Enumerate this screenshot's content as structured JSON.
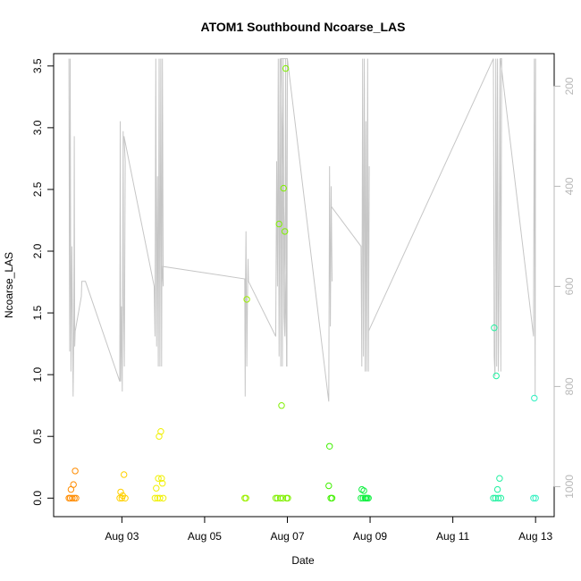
{
  "chart_data": {
    "type": "scatter",
    "title": "ATOM1 Southbound Ncoarse_LAS",
    "xlabel": "Date",
    "ylabel": "Ncoarse_LAS",
    "x_ticks": [
      "Aug 03",
      "Aug 05",
      "Aug 07",
      "Aug 09",
      "Aug 11",
      "Aug 13"
    ],
    "x_tick_values": [
      3,
      5,
      7,
      9,
      11,
      13
    ],
    "xlim": [
      1.35,
      13.45
    ],
    "y_ticks": [
      "0.0",
      "0.5",
      "1.0",
      "1.5",
      "2.0",
      "2.5",
      "3.0",
      "3.5"
    ],
    "y_tick_values": [
      0,
      0.5,
      1,
      1.5,
      2,
      2.5,
      3,
      3.5
    ],
    "ylim": [
      -0.15,
      3.6
    ],
    "y2_ticks": [
      "200",
      "400",
      "600",
      "800",
      "1000"
    ],
    "y2_tick_values": [
      200,
      400,
      600,
      800,
      1000
    ],
    "y2lim": [
      1060,
      135
    ],
    "grid": false,
    "points": [
      {
        "x": 1.72,
        "y": 0.0,
        "color": "#ff8c00"
      },
      {
        "x": 1.75,
        "y": 0.0,
        "color": "#ff8c00"
      },
      {
        "x": 1.77,
        "y": 0.07,
        "color": "#ff8c00"
      },
      {
        "x": 1.8,
        "y": 0.0,
        "color": "#ff8c00"
      },
      {
        "x": 1.83,
        "y": 0.11,
        "color": "#ff8c00"
      },
      {
        "x": 1.85,
        "y": 0.0,
        "color": "#ff8c00"
      },
      {
        "x": 1.87,
        "y": 0.22,
        "color": "#ff8c00"
      },
      {
        "x": 1.89,
        "y": 0.0,
        "color": "#ff8c00"
      },
      {
        "x": 2.95,
        "y": 0.0,
        "color": "#ffd000"
      },
      {
        "x": 2.97,
        "y": 0.05,
        "color": "#ffd000"
      },
      {
        "x": 3.0,
        "y": 0.0,
        "color": "#ffd000"
      },
      {
        "x": 3.02,
        "y": 0.02,
        "color": "#ffd000"
      },
      {
        "x": 3.05,
        "y": 0.19,
        "color": "#ffd000"
      },
      {
        "x": 3.08,
        "y": 0.0,
        "color": "#ffd000"
      },
      {
        "x": 3.8,
        "y": 0.0,
        "color": "#f0f000"
      },
      {
        "x": 3.83,
        "y": 0.08,
        "color": "#f0f000"
      },
      {
        "x": 3.86,
        "y": 0.0,
        "color": "#f0f000"
      },
      {
        "x": 3.88,
        "y": 0.16,
        "color": "#f0f000"
      },
      {
        "x": 3.9,
        "y": 0.5,
        "color": "#f0f000"
      },
      {
        "x": 3.92,
        "y": 0.0,
        "color": "#f0f000"
      },
      {
        "x": 3.94,
        "y": 0.54,
        "color": "#f0f000"
      },
      {
        "x": 3.96,
        "y": 0.16,
        "color": "#f0f000"
      },
      {
        "x": 3.98,
        "y": 0.12,
        "color": "#f0f000"
      },
      {
        "x": 4.0,
        "y": 0.0,
        "color": "#f0f000"
      },
      {
        "x": 5.97,
        "y": 0.0,
        "color": "#9cf000"
      },
      {
        "x": 6.0,
        "y": 0.0,
        "color": "#9cf000"
      },
      {
        "x": 6.02,
        "y": 1.61,
        "color": "#9cf000"
      },
      {
        "x": 6.72,
        "y": 0.0,
        "color": "#80f000"
      },
      {
        "x": 6.76,
        "y": 0.0,
        "color": "#80f000"
      },
      {
        "x": 6.8,
        "y": 2.22,
        "color": "#80f000"
      },
      {
        "x": 6.83,
        "y": 0.0,
        "color": "#80f000"
      },
      {
        "x": 6.86,
        "y": 0.75,
        "color": "#80f000"
      },
      {
        "x": 6.89,
        "y": 0.0,
        "color": "#80f000"
      },
      {
        "x": 6.91,
        "y": 2.51,
        "color": "#80f000"
      },
      {
        "x": 6.94,
        "y": 2.16,
        "color": "#80f000"
      },
      {
        "x": 6.96,
        "y": 3.48,
        "color": "#80f000"
      },
      {
        "x": 6.98,
        "y": 0.0,
        "color": "#80f000"
      },
      {
        "x": 7.01,
        "y": 0.0,
        "color": "#80f000"
      },
      {
        "x": 8.0,
        "y": 0.1,
        "color": "#40f000"
      },
      {
        "x": 8.02,
        "y": 0.42,
        "color": "#40f000"
      },
      {
        "x": 8.05,
        "y": 0.0,
        "color": "#40f000"
      },
      {
        "x": 8.08,
        "y": 0.0,
        "color": "#40f000"
      },
      {
        "x": 8.78,
        "y": 0.0,
        "color": "#10f040"
      },
      {
        "x": 8.8,
        "y": 0.07,
        "color": "#10f040"
      },
      {
        "x": 8.83,
        "y": 0.0,
        "color": "#10f040"
      },
      {
        "x": 8.85,
        "y": 0.06,
        "color": "#10f040"
      },
      {
        "x": 8.88,
        "y": 0.0,
        "color": "#10f040"
      },
      {
        "x": 8.9,
        "y": 0.0,
        "color": "#10f040"
      },
      {
        "x": 8.93,
        "y": 0.0,
        "color": "#10f040"
      },
      {
        "x": 8.96,
        "y": 0.0,
        "color": "#10f040"
      },
      {
        "x": 11.98,
        "y": 0.0,
        "color": "#20f0a0"
      },
      {
        "x": 12.0,
        "y": 1.38,
        "color": "#20f0a0"
      },
      {
        "x": 12.03,
        "y": 0.0,
        "color": "#20f0a0"
      },
      {
        "x": 12.05,
        "y": 0.99,
        "color": "#20f0a0"
      },
      {
        "x": 12.08,
        "y": 0.07,
        "color": "#20f0a0"
      },
      {
        "x": 12.1,
        "y": 0.0,
        "color": "#20f0a0"
      },
      {
        "x": 12.13,
        "y": 0.16,
        "color": "#20f0a0"
      },
      {
        "x": 12.16,
        "y": 0.0,
        "color": "#20f0a0"
      },
      {
        "x": 12.95,
        "y": 0.0,
        "color": "#30f0c0"
      },
      {
        "x": 12.97,
        "y": 0.81,
        "color": "#30f0c0"
      },
      {
        "x": 13.0,
        "y": 0.0,
        "color": "#30f0c0"
      }
    ],
    "depth_line": {
      "color": "#c6c6c6",
      "x": [
        1.72,
        1.73,
        1.74,
        1.75,
        1.77,
        1.79,
        1.82,
        1.84,
        1.85,
        1.86,
        1.87,
        2.02,
        2.03,
        2.12,
        2.95,
        2.96,
        2.97,
        2.99,
        3.01,
        3.03,
        3.04,
        3.06,
        3.08,
        3.05,
        3.78,
        3.8,
        3.82,
        3.84,
        3.86,
        3.88,
        3.9,
        3.92,
        3.94,
        3.96,
        3.98,
        4.0,
        3.97,
        5.97,
        5.98,
        5.99,
        6.0,
        6.02,
        6.04,
        6.05,
        6.06,
        6.72,
        6.74,
        6.76,
        6.78,
        6.8,
        6.82,
        6.84,
        6.86,
        6.88,
        6.9,
        6.92,
        6.94,
        6.96,
        6.98,
        7.0,
        6.84,
        6.99,
        7.0,
        8.0,
        8.02,
        8.04,
        8.06,
        8.08,
        8.06,
        8.78,
        8.8,
        8.82,
        8.84,
        8.86,
        8.88,
        8.9,
        8.92,
        8.94,
        8.96,
        8.98,
        8.96,
        11.98,
        12.0,
        12.02,
        12.04,
        12.06,
        12.08,
        12.1,
        12.12,
        12.14,
        12.16,
        12.18,
        12.15,
        12.95,
        12.97,
        12.99,
        13.0
      ],
      "y": [
        145,
        500,
        730,
        145,
        770,
        520,
        820,
        660,
        300,
        720,
        690,
        620,
        590,
        590,
        790,
        270,
        790,
        640,
        810,
        290,
        620,
        760,
        350,
        300,
        600,
        700,
        145,
        720,
        380,
        760,
        145,
        760,
        145,
        760,
        145,
        600,
        560,
        585,
        820,
        590,
        490,
        760,
        590,
        545,
        590,
        700,
        350,
        600,
        145,
        740,
        145,
        760,
        145,
        760,
        145,
        660,
        700,
        145,
        760,
        145,
        145,
        760,
        145,
        830,
        360,
        680,
        400,
        590,
        440,
        520,
        760,
        145,
        740,
        145,
        770,
        270,
        770,
        145,
        770,
        360,
        690,
        145,
        740,
        780,
        145,
        760,
        145,
        770,
        590,
        145,
        770,
        145,
        145,
        700,
        145,
        820,
        145
      ]
    }
  }
}
